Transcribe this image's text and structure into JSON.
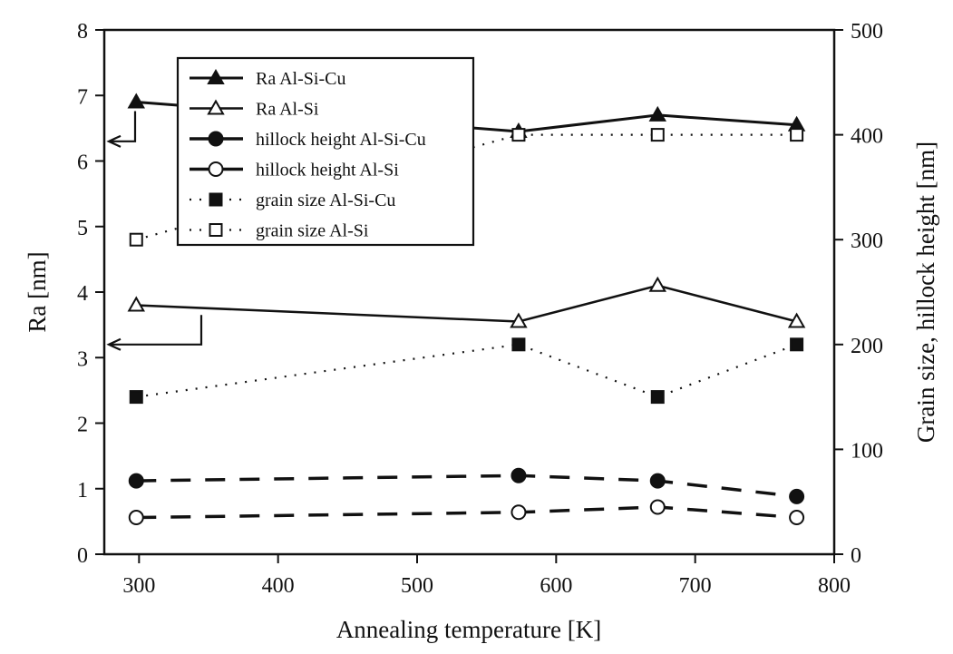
{
  "chart_data": {
    "type": "line",
    "title": "",
    "xlabel": "Annealing temperature [K]",
    "ylabel": "Ra [nm]",
    "y2label": "Grain size, hillock height [nm]",
    "xlim": [
      275,
      800
    ],
    "ylim": [
      0,
      8
    ],
    "y2lim": [
      0,
      500
    ],
    "xticks": [
      300,
      400,
      500,
      600,
      700,
      800
    ],
    "yticks": [
      0,
      1,
      2,
      3,
      4,
      5,
      6,
      7,
      8
    ],
    "y2ticks": [
      0,
      100,
      200,
      300,
      400,
      500
    ],
    "x": [
      298,
      573,
      673,
      773
    ],
    "legend_position": "top-left",
    "series": [
      {
        "name": "Ra Al-Si-Cu",
        "axis": "left",
        "values": [
          6.9,
          6.45,
          6.7,
          6.55
        ],
        "marker": "triangle-filled",
        "line": "solid-thick"
      },
      {
        "name": "Ra Al-Si",
        "axis": "left",
        "values": [
          3.8,
          3.55,
          4.1,
          3.55
        ],
        "marker": "triangle-open",
        "line": "solid"
      },
      {
        "name": "hillock height Al-Si-Cu",
        "axis": "right",
        "values": [
          70,
          75,
          70,
          55
        ],
        "marker": "circle-filled",
        "line": "dashed"
      },
      {
        "name": "hillock height Al-Si",
        "axis": "right",
        "values": [
          35,
          40,
          45,
          35
        ],
        "marker": "circle-open",
        "line": "dashed"
      },
      {
        "name": "grain size Al-Si-Cu",
        "axis": "right",
        "values": [
          150,
          200,
          150,
          200
        ],
        "marker": "square-filled",
        "line": "dotted"
      },
      {
        "name": "grain size Al-Si",
        "axis": "right",
        "values": [
          300,
          400,
          400,
          400
        ],
        "marker": "square-open",
        "line": "dotted"
      }
    ]
  }
}
